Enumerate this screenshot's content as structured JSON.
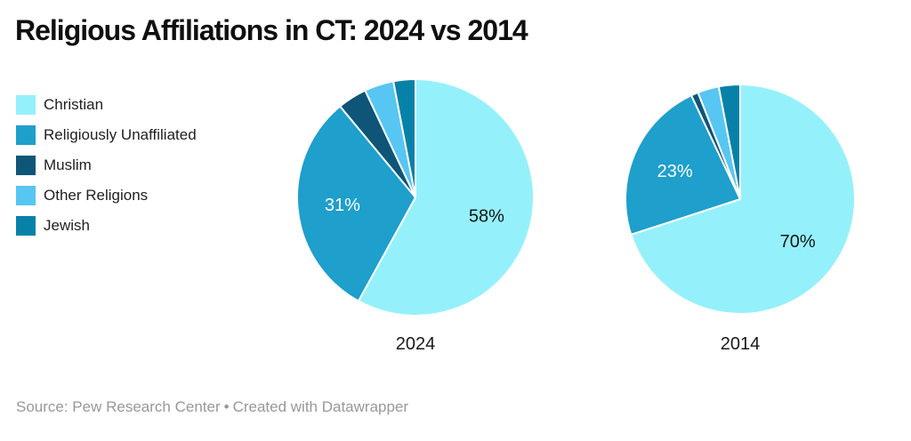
{
  "header": {
    "title": "Religious Affiliations in CT: 2024 vs 2014"
  },
  "footer": {
    "source": "Source: Pew Research Center",
    "separator": "•",
    "credit": "Created with Datawrapper"
  },
  "chart_data": {
    "type": "pie",
    "title": "Religious Affiliations in CT: 2024 vs 2014",
    "legend_position": "upper-left",
    "direction": "clockwise",
    "start_angle_deg": 0,
    "categories": [
      "Christian",
      "Religiously Unaffiliated",
      "Muslim",
      "Other Religions",
      "Jewish"
    ],
    "colors": [
      "#94F1FB",
      "#1E9FCC",
      "#0E5577",
      "#57C6F2",
      "#0881A8"
    ],
    "pies": [
      {
        "label": "2024",
        "values": [
          58,
          31,
          4,
          4,
          3
        ],
        "data_labels": [
          "58%",
          "31%",
          "",
          "",
          ""
        ],
        "data_label_colors": [
          "#151515",
          "#ffffff",
          "",
          "",
          ""
        ]
      },
      {
        "label": "2014",
        "values": [
          70,
          23,
          1,
          3,
          3
        ],
        "data_labels": [
          "70%",
          "23%",
          "",
          "",
          ""
        ],
        "data_label_colors": [
          "#151515",
          "#ffffff",
          "",
          "",
          ""
        ]
      }
    ],
    "source": "Pew Research Center",
    "credit": "Created with Datawrapper"
  }
}
